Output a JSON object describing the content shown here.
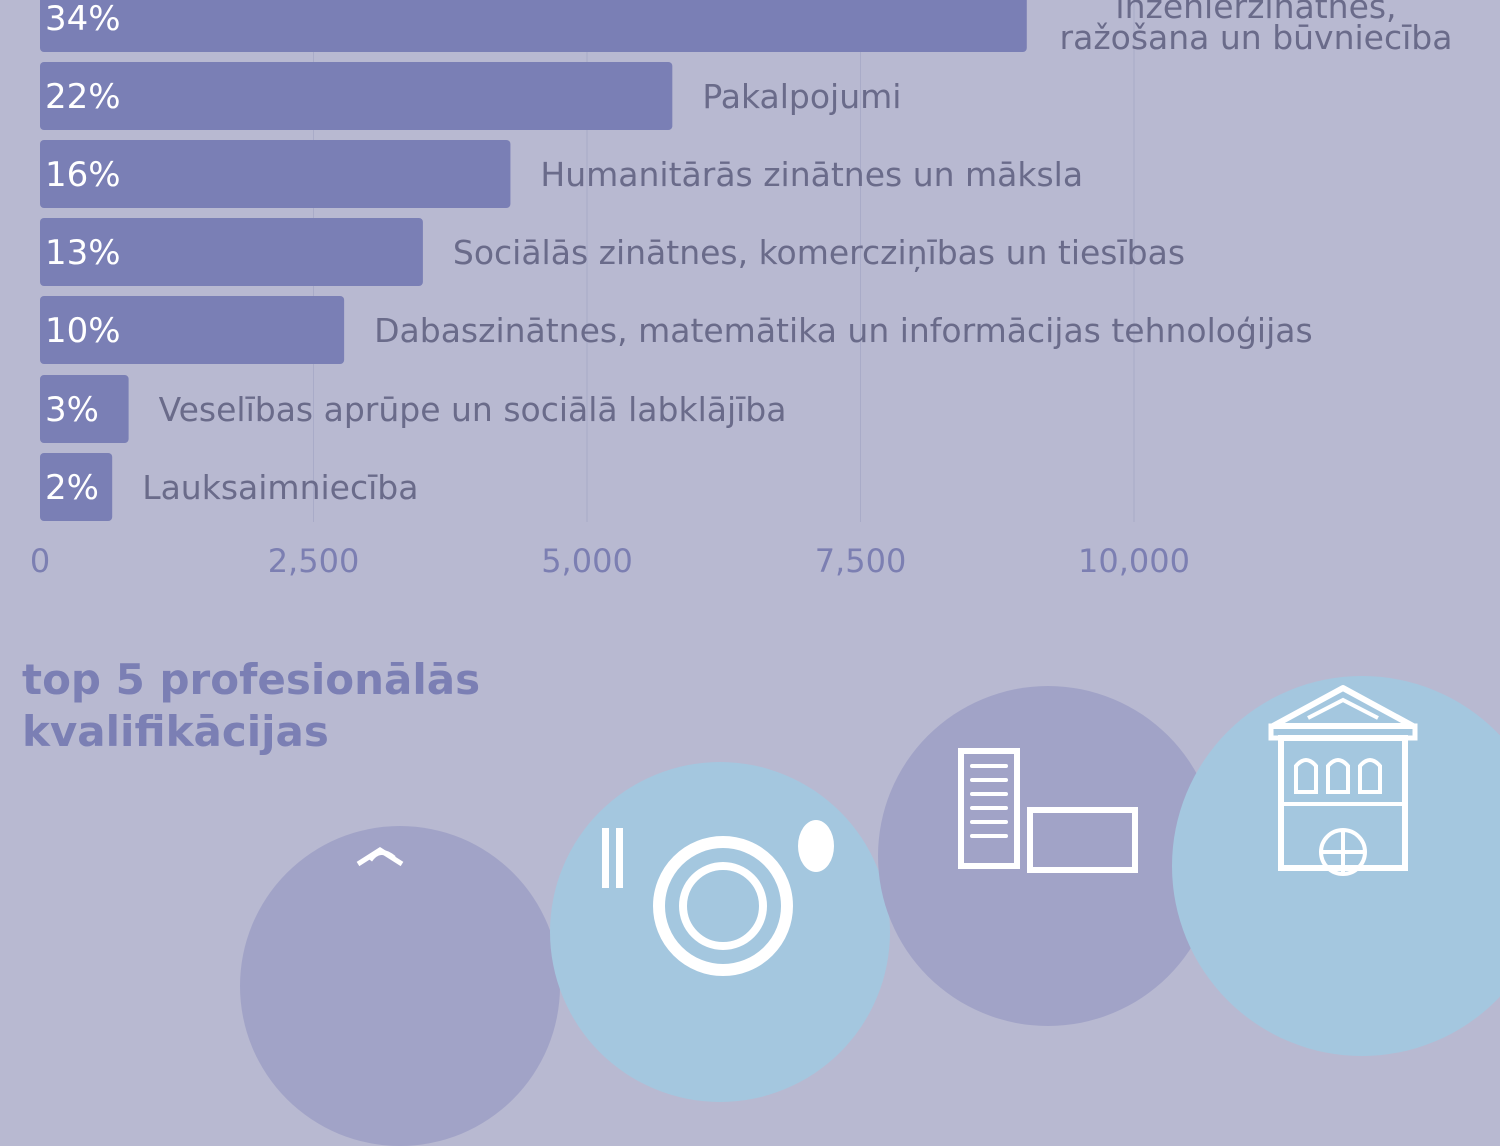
{
  "chart_data": {
    "type": "bar",
    "orientation": "horizontal",
    "categories": [
      "Inženierzinātnes, ražošana un būvniecība",
      "Pakalpojumi",
      "Humanitārās zinātnes un māksla",
      "Sociālās zinātnes, komercziņības un tiesības",
      "Dabaszinātnes, matemātika un informācijas tehnoloģijas",
      "Veselības aprūpe un sociālā labklājība",
      "Lauksaimniecība"
    ],
    "category_label_lines": [
      [
        "inženierzinātnes,",
        "ražošana un būvniecība"
      ],
      [
        "Pakalpojumi"
      ],
      [
        "Humanitārās zinātnes un māksla"
      ],
      [
        "Sociālās zinātnes, komercziņības un tiesības"
      ],
      [
        "Dabaszinātnes, matemātika un informācijas tehnoloģijas"
      ],
      [
        "Veselības aprūpe un sociālā labklājība"
      ],
      [
        "Lauksaimniecība"
      ]
    ],
    "values": [
      9020,
      5780,
      4300,
      3500,
      2780,
      810,
      660
    ],
    "data_labels": [
      "34%",
      "22%",
      "16%",
      "13%",
      "10%",
      "3%",
      "2%"
    ],
    "xlim": [
      0,
      12500
    ],
    "xticks": [
      0,
      2500,
      5000,
      7500,
      10000
    ],
    "xtick_labels": [
      "0",
      "2,500",
      "5,000",
      "7,500",
      "10,000"
    ],
    "grid": true,
    "colors": {
      "bar": "#7a7fb5",
      "grid": "#a9abc8"
    }
  },
  "section": {
    "title_lines": [
      "top 5 profesionālās",
      "kvalifikācijas"
    ]
  },
  "icons": [
    "graduate-icon",
    "restaurant-icon",
    "office-building-icon",
    "historic-building-icon"
  ],
  "colors": {
    "background": "#b8b9d1",
    "title": "#7b7fb4",
    "circle_blue": "#a4c7df",
    "circle_purple": "#a1a3c7",
    "icon": "#ffffff"
  }
}
